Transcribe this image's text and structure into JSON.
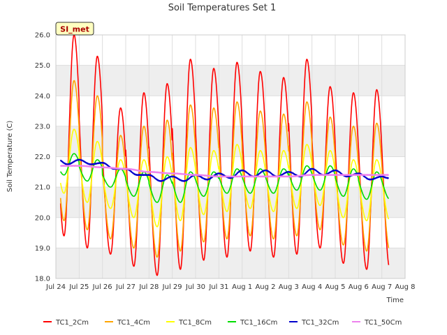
{
  "chart_data": {
    "type": "line",
    "title": "Soil Temperatures Set 1",
    "xlabel": "Time",
    "ylabel": "Soil Temperature (C)",
    "badge": "SI_met",
    "x_range": [
      "2023-07-24",
      "2023-08-08"
    ],
    "x_tick_labels": [
      "Jul 24",
      "Jul 25",
      "Jul 26",
      "Jul 27",
      "Jul 28",
      "Jul 29",
      "Jul 30",
      "Jul 31",
      "Aug 1",
      "Aug 2",
      "Aug 3",
      "Aug 4",
      "Aug 5",
      "Aug 6",
      "Aug 7",
      "Aug 8"
    ],
    "ylim": [
      18.0,
      26.0
    ],
    "y_tick_labels": [
      "18.0",
      "19.0",
      "20.0",
      "21.0",
      "22.0",
      "23.0",
      "24.0",
      "25.0",
      "26.0"
    ],
    "grid": true,
    "legend_position": "bottom",
    "series": [
      {
        "name": "TC1_2Cm",
        "color": "#ff0000",
        "mean": 21.6,
        "peaks": [
          26.0,
          25.3,
          23.6,
          24.1,
          24.4,
          25.2,
          24.9,
          25.1,
          24.8,
          24.6,
          25.2,
          24.3,
          24.1,
          24.2
        ],
        "troughs": [
          19.4,
          19.0,
          18.8,
          18.4,
          18.1,
          18.3,
          18.6,
          18.7,
          18.9,
          18.7,
          18.8,
          19.0,
          18.5,
          18.3
        ]
      },
      {
        "name": "TC1_4Cm",
        "color": "#ffa500",
        "mean": 21.6,
        "peaks": [
          24.5,
          24.0,
          22.7,
          23.0,
          23.2,
          23.7,
          23.6,
          23.8,
          23.5,
          23.4,
          23.8,
          23.3,
          23.0,
          23.1
        ],
        "troughs": [
          19.9,
          19.6,
          19.3,
          19.0,
          18.7,
          18.9,
          19.2,
          19.3,
          19.4,
          19.3,
          19.4,
          19.6,
          19.1,
          18.9
        ]
      },
      {
        "name": "TC1_8Cm",
        "color": "#ffff00",
        "mean": 21.5,
        "peaks": [
          22.9,
          22.5,
          21.9,
          21.9,
          22.0,
          22.3,
          22.2,
          22.4,
          22.2,
          22.2,
          22.4,
          22.2,
          21.9,
          21.9
        ],
        "troughs": [
          20.8,
          20.5,
          20.3,
          20.0,
          19.7,
          19.9,
          20.1,
          20.2,
          20.3,
          20.2,
          20.3,
          20.4,
          20.0,
          19.9
        ]
      },
      {
        "name": "TC1_16Cm",
        "color": "#00dd00",
        "mean": 21.3,
        "peaks": [
          22.1,
          21.9,
          21.6,
          21.5,
          21.4,
          21.5,
          21.5,
          21.6,
          21.6,
          21.6,
          21.7,
          21.7,
          21.6,
          21.5
        ],
        "troughs": [
          21.4,
          21.2,
          21.0,
          20.7,
          20.5,
          20.5,
          20.7,
          20.8,
          20.8,
          20.8,
          20.9,
          20.9,
          20.7,
          20.6
        ]
      },
      {
        "name": "TC1_32Cm",
        "color": "#0000cc",
        "mean": 21.5,
        "anchors": [
          [
            "2023-07-24T00:00",
            21.95
          ],
          [
            "2023-07-24T12:00",
            21.75
          ],
          [
            "2023-07-25T00:00",
            21.9
          ],
          [
            "2023-07-25T12:00",
            21.75
          ],
          [
            "2023-07-26T00:00",
            21.8
          ],
          [
            "2023-07-26T12:00",
            21.6
          ],
          [
            "2023-07-27T00:00",
            21.6
          ],
          [
            "2023-07-27T12:00",
            21.4
          ],
          [
            "2023-07-28T00:00",
            21.4
          ],
          [
            "2023-07-28T12:00",
            21.2
          ],
          [
            "2023-07-29T00:00",
            21.35
          ],
          [
            "2023-07-29T12:00",
            21.2
          ],
          [
            "2023-07-30T00:00",
            21.4
          ],
          [
            "2023-07-30T12:00",
            21.25
          ],
          [
            "2023-07-31T00:00",
            21.45
          ],
          [
            "2023-07-31T12:00",
            21.3
          ],
          [
            "2023-08-01T00:00",
            21.55
          ],
          [
            "2023-08-01T12:00",
            21.35
          ],
          [
            "2023-08-02T00:00",
            21.55
          ],
          [
            "2023-08-02T12:00",
            21.35
          ],
          [
            "2023-08-03T00:00",
            21.5
          ],
          [
            "2023-08-03T12:00",
            21.35
          ],
          [
            "2023-08-04T00:00",
            21.6
          ],
          [
            "2023-08-04T12:00",
            21.4
          ],
          [
            "2023-08-05T00:00",
            21.55
          ],
          [
            "2023-08-05T12:00",
            21.35
          ],
          [
            "2023-08-06T00:00",
            21.45
          ],
          [
            "2023-08-06T12:00",
            21.25
          ],
          [
            "2023-08-07T00:00",
            21.35
          ],
          [
            "2023-08-07T06:00",
            21.3
          ]
        ]
      },
      {
        "name": "TC1_50Cm",
        "color": "#ee82ee",
        "mean": 21.5,
        "anchors": [
          [
            "2023-07-24T00:00",
            21.7
          ],
          [
            "2023-07-25T00:00",
            21.7
          ],
          [
            "2023-07-26T00:00",
            21.65
          ],
          [
            "2023-07-27T00:00",
            21.6
          ],
          [
            "2023-07-28T00:00",
            21.5
          ],
          [
            "2023-07-29T00:00",
            21.45
          ],
          [
            "2023-07-30T00:00",
            21.4
          ],
          [
            "2023-07-31T00:00",
            21.35
          ],
          [
            "2023-08-01T00:00",
            21.35
          ],
          [
            "2023-08-02T00:00",
            21.35
          ],
          [
            "2023-08-03T00:00",
            21.35
          ],
          [
            "2023-08-04T00:00",
            21.4
          ],
          [
            "2023-08-05T00:00",
            21.4
          ],
          [
            "2023-08-06T00:00",
            21.4
          ],
          [
            "2023-08-07T06:00",
            21.4
          ]
        ]
      }
    ]
  }
}
